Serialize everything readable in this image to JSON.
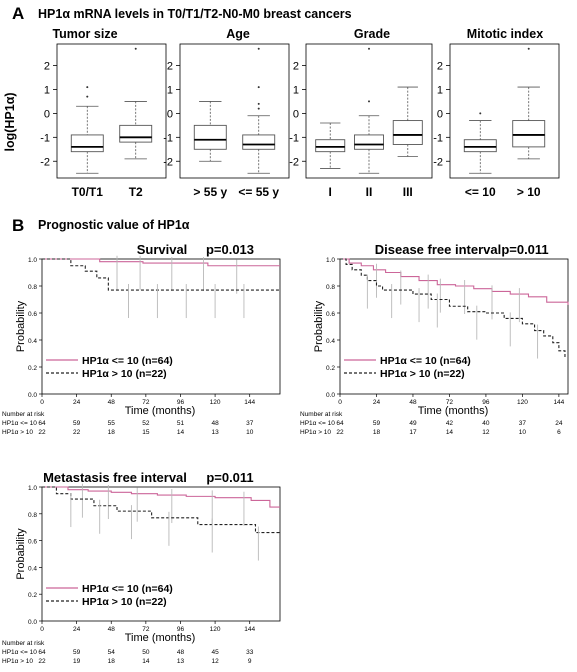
{
  "panel_a": {
    "letter": "A",
    "title": "HP1α mRNA levels in T0/T1/T2-N0-M0 breast cancers",
    "ylabel": "log(HP1α)"
  },
  "panel_b": {
    "letter": "B",
    "title": "Prognostic value of HP1α"
  },
  "colors": {
    "low": "#cc6699",
    "high": "#222222",
    "box": "#555555",
    "censor": "#b8b8b8"
  },
  "chart_data": [
    {
      "type": "box",
      "title": "Tumor size",
      "ylabel": "log(HP1α)",
      "ylim": [
        -2.7,
        2.9
      ],
      "yticks": [
        -2,
        -1,
        0,
        1,
        2
      ],
      "categories": [
        "T0/T1",
        "T2"
      ],
      "boxes": [
        {
          "whisker_low": -2.5,
          "q1": -1.6,
          "median": -1.4,
          "q3": -0.9,
          "whisker_high": 0.3,
          "outliers": [
            0.7,
            1.1
          ]
        },
        {
          "whisker_low": -1.9,
          "q1": -1.2,
          "median": -1.0,
          "q3": -0.5,
          "whisker_high": 0.5,
          "outliers": [
            2.7
          ]
        }
      ]
    },
    {
      "type": "box",
      "title": "Age",
      "ylim": [
        -2.7,
        2.9
      ],
      "yticks": [
        -2,
        -1,
        0,
        1,
        2
      ],
      "categories": [
        "> 55 y",
        "<= 55 y"
      ],
      "boxes": [
        {
          "whisker_low": -2.0,
          "q1": -1.5,
          "median": -1.1,
          "q3": -0.5,
          "whisker_high": 0.5,
          "outliers": []
        },
        {
          "whisker_low": -2.5,
          "q1": -1.5,
          "median": -1.3,
          "q3": -0.9,
          "whisker_high": -0.1,
          "outliers": [
            0.2,
            0.4,
            1.1,
            2.7
          ]
        }
      ]
    },
    {
      "type": "box",
      "title": "Grade",
      "ylim": [
        -2.7,
        2.9
      ],
      "yticks": [
        -2,
        -1,
        0,
        1,
        2
      ],
      "categories": [
        "I",
        "II",
        "III"
      ],
      "boxes": [
        {
          "whisker_low": -2.3,
          "q1": -1.6,
          "median": -1.4,
          "q3": -1.1,
          "whisker_high": -0.4,
          "outliers": []
        },
        {
          "whisker_low": -2.5,
          "q1": -1.5,
          "median": -1.3,
          "q3": -0.9,
          "whisker_high": -0.1,
          "outliers": [
            0.5,
            2.7
          ]
        },
        {
          "whisker_low": -1.8,
          "q1": -1.3,
          "median": -0.9,
          "q3": -0.3,
          "whisker_high": 1.1,
          "outliers": []
        }
      ]
    },
    {
      "type": "box",
      "title": "Mitotic index",
      "ylim": [
        -2.7,
        2.9
      ],
      "yticks": [
        -2,
        -1,
        0,
        1,
        2
      ],
      "categories": [
        "<= 10",
        "> 10"
      ],
      "boxes": [
        {
          "whisker_low": -2.5,
          "q1": -1.6,
          "median": -1.4,
          "q3": -1.1,
          "whisker_high": -0.3,
          "outliers": [
            0.0
          ]
        },
        {
          "whisker_low": -1.9,
          "q1": -1.4,
          "median": -0.9,
          "q3": -0.3,
          "whisker_high": 1.1,
          "outliers": [
            2.7
          ]
        }
      ]
    },
    {
      "type": "line",
      "subtype": "kaplan-meier",
      "title": "Survival",
      "pvalue": "p=0.013",
      "ylabel": "Probability",
      "xlabel": "Time (months)",
      "xlim": [
        0,
        165
      ],
      "ylim": [
        0,
        1.0
      ],
      "xticks": [
        0,
        24,
        48,
        72,
        96,
        120,
        144
      ],
      "yticks": [
        0.0,
        0.2,
        0.4,
        0.6,
        0.8,
        1.0
      ],
      "series": [
        {
          "name": "HP1α <= 10 (n=64)",
          "color": "#cc6699",
          "dash": false,
          "x": [
            0,
            40,
            70,
            115,
            165
          ],
          "y": [
            1.0,
            0.98,
            0.97,
            0.95,
            0.95
          ],
          "censor_x": [
            52,
            68,
            90,
            112,
            135
          ]
        },
        {
          "name": "HP1α > 10 (n=22)",
          "color": "#222222",
          "dash": true,
          "x": [
            0,
            20,
            30,
            38,
            46,
            165
          ],
          "y": [
            1.0,
            0.95,
            0.91,
            0.86,
            0.77,
            0.77
          ],
          "censor_x": [
            60,
            80,
            100,
            120,
            140
          ]
        }
      ],
      "risk_table": {
        "header": "Number at risk",
        "rows": [
          {
            "label": "HP1α <= 10",
            "counts": [
              "64",
              "59",
              "55",
              "52",
              "51",
              "48",
              "37"
            ]
          },
          {
            "label": "HP1α > 10",
            "counts": [
              "22",
              "22",
              "18",
              "15",
              "14",
              "13",
              "10"
            ]
          }
        ]
      }
    },
    {
      "type": "line",
      "subtype": "kaplan-meier",
      "title": "Disease free interval",
      "pvalue": "p=0.011",
      "ylabel": "Probability",
      "xlabel": "Time (months)",
      "xlim": [
        0,
        150
      ],
      "ylim": [
        0,
        1.0
      ],
      "xticks": [
        0,
        24,
        48,
        72,
        96,
        120,
        144
      ],
      "yticks": [
        0.0,
        0.2,
        0.4,
        0.6,
        0.8,
        1.0
      ],
      "series": [
        {
          "name": "HP1α <= 10 (n=64)",
          "color": "#cc6699",
          "dash": false,
          "x": [
            0,
            6,
            14,
            22,
            30,
            40,
            52,
            64,
            76,
            88,
            100,
            112,
            124,
            136,
            150
          ],
          "y": [
            1.0,
            0.97,
            0.95,
            0.92,
            0.9,
            0.87,
            0.84,
            0.81,
            0.8,
            0.78,
            0.76,
            0.74,
            0.72,
            0.68,
            0.66
          ],
          "censor_x": [
            24,
            40,
            58,
            66,
            82,
            100,
            118
          ]
        },
        {
          "name": "HP1α > 10 (n=22)",
          "color": "#222222",
          "dash": true,
          "x": [
            0,
            4,
            8,
            14,
            18,
            24,
            28,
            36,
            48,
            60,
            72,
            84,
            96,
            108,
            120,
            128,
            134,
            140,
            144,
            148
          ],
          "y": [
            1.0,
            0.96,
            0.92,
            0.88,
            0.84,
            0.8,
            0.77,
            0.77,
            0.74,
            0.7,
            0.65,
            0.61,
            0.6,
            0.56,
            0.52,
            0.47,
            0.43,
            0.38,
            0.32,
            0.27
          ],
          "censor_x": [
            18,
            34,
            52,
            64,
            90,
            112,
            130
          ]
        }
      ],
      "risk_table": {
        "header": "Number at risk",
        "rows": [
          {
            "label": "HP1α <= 10",
            "counts": [
              "64",
              "59",
              "49",
              "42",
              "40",
              "37",
              "24"
            ]
          },
          {
            "label": "HP1α > 10",
            "counts": [
              "22",
              "18",
              "17",
              "14",
              "12",
              "10",
              "6"
            ]
          }
        ]
      }
    },
    {
      "type": "line",
      "subtype": "kaplan-meier",
      "title": "Metastasis free interval",
      "pvalue": "p=0.011",
      "ylabel": "Probability",
      "xlabel": "Time (months)",
      "xlim": [
        0,
        165
      ],
      "ylim": [
        0,
        1.0
      ],
      "xticks": [
        0,
        24,
        48,
        72,
        96,
        120,
        144
      ],
      "yticks": [
        0.0,
        0.2,
        0.4,
        0.6,
        0.8,
        1.0
      ],
      "series": [
        {
          "name": "HP1α <= 10 (n=64)",
          "color": "#cc6699",
          "dash": false,
          "x": [
            0,
            18,
            32,
            48,
            62,
            80,
            100,
            120,
            145,
            158,
            165
          ],
          "y": [
            1.0,
            0.98,
            0.97,
            0.96,
            0.95,
            0.94,
            0.93,
            0.92,
            0.9,
            0.85,
            0.85
          ],
          "censor_x": [
            28,
            46,
            66,
            90,
            118,
            140
          ]
        },
        {
          "name": "HP1α > 10 (n=22)",
          "color": "#222222",
          "dash": true,
          "x": [
            0,
            10,
            20,
            36,
            52,
            76,
            108,
            148,
            165
          ],
          "y": [
            1.0,
            0.95,
            0.91,
            0.86,
            0.82,
            0.77,
            0.72,
            0.66,
            0.66
          ],
          "censor_x": [
            20,
            40,
            62,
            88,
            118,
            150
          ]
        }
      ],
      "risk_table": {
        "header": "Number at risk",
        "rows": [
          {
            "label": "HP1α <= 10",
            "counts": [
              "64",
              "59",
              "54",
              "50",
              "48",
              "45",
              "33"
            ]
          },
          {
            "label": "HP1α > 10",
            "counts": [
              "22",
              "19",
              "18",
              "14",
              "13",
              "12",
              "9"
            ]
          }
        ]
      }
    }
  ]
}
